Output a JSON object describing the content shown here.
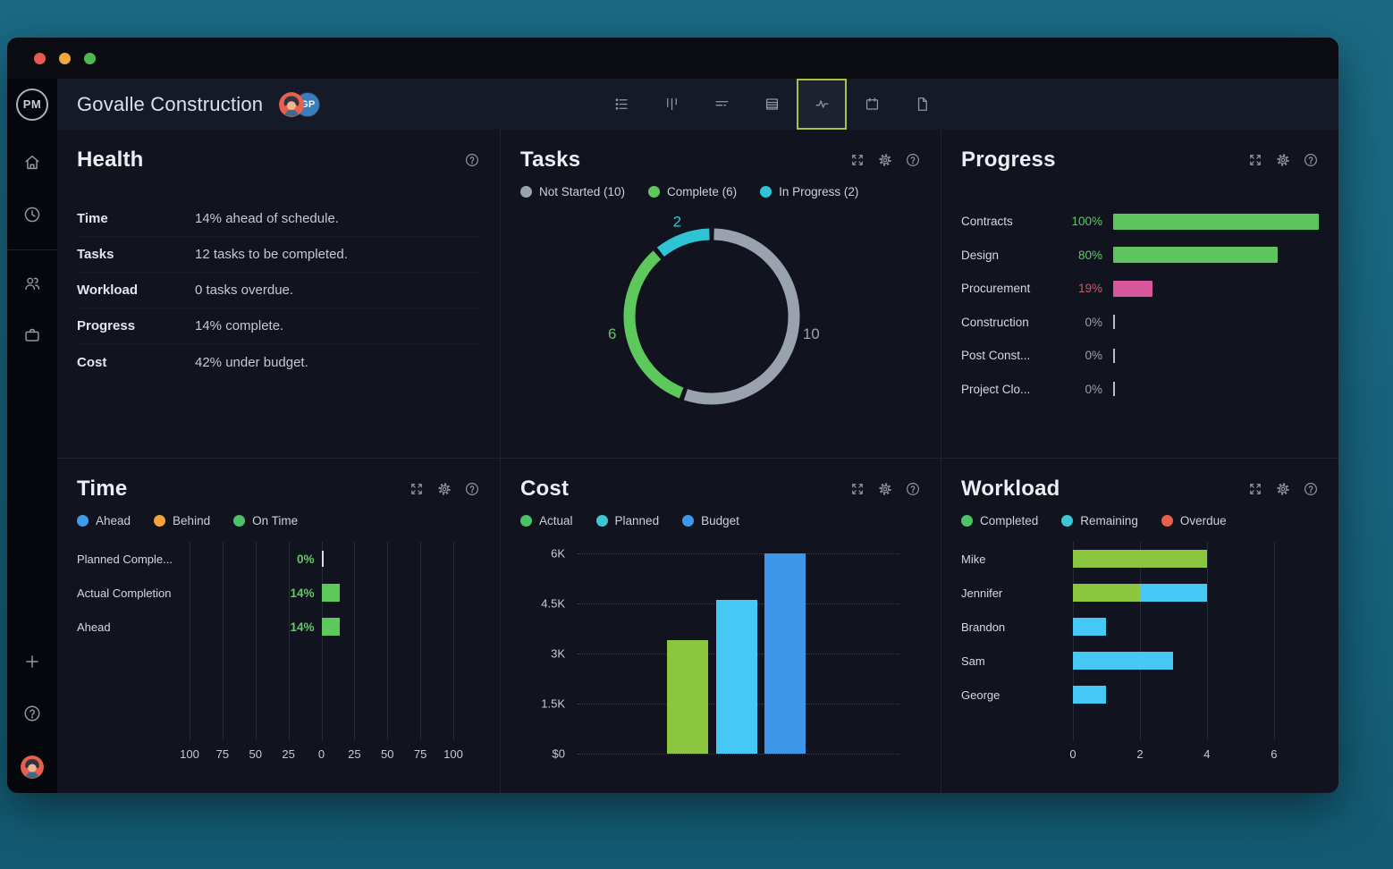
{
  "window_controls": {
    "close": "close-button",
    "minimize": "minimize-button",
    "zoom": "zoom-button"
  },
  "header": {
    "logo": "PM",
    "title": "Govalle Construction",
    "avatar_initials": "GP",
    "toolbar": [
      {
        "icon": "list-view-icon",
        "active": false
      },
      {
        "icon": "board-view-icon",
        "active": false
      },
      {
        "icon": "gantt-view-icon",
        "active": false
      },
      {
        "icon": "sheet-view-icon",
        "active": false
      },
      {
        "icon": "dashboard-view-icon",
        "active": true
      },
      {
        "icon": "calendar-view-icon",
        "active": false
      },
      {
        "icon": "report-view-icon",
        "active": false
      }
    ],
    "active_tool_border": "#a6c53e"
  },
  "sidebar": {
    "top": [
      "home-icon",
      "clock-icon",
      "team-icon",
      "portfolio-icon"
    ],
    "bottom": [
      "plus-icon",
      "help-icon"
    ]
  },
  "panels": {
    "health": {
      "title": "Health",
      "rows": [
        {
          "label": "Time",
          "value": "14% ahead of schedule."
        },
        {
          "label": "Tasks",
          "value": "12 tasks to be completed."
        },
        {
          "label": "Workload",
          "value": "0 tasks overdue."
        },
        {
          "label": "Progress",
          "value": "14% complete."
        },
        {
          "label": "Cost",
          "value": "42% under budget."
        }
      ]
    },
    "tasks": {
      "title": "Tasks",
      "legend": [
        {
          "label": "Not Started (10)",
          "color": "#9aa3ad"
        },
        {
          "label": "Complete (6)",
          "color": "#5dc95d"
        },
        {
          "label": "In Progress (2)",
          "color": "#2fc4d4"
        }
      ],
      "chart_data": {
        "type": "pie",
        "donut": true,
        "segments": [
          {
            "name": "Not Started",
            "value": 10,
            "label": "10",
            "color": "#9aa3ad"
          },
          {
            "name": "Complete",
            "value": 6,
            "label": "6",
            "color": "#5dc95d"
          },
          {
            "name": "In Progress",
            "value": 2,
            "label": "2",
            "color": "#2fc4d4"
          }
        ]
      }
    },
    "progress": {
      "title": "Progress",
      "chart_data": {
        "type": "bar",
        "orientation": "horizontal",
        "rows": [
          {
            "label": "Contracts",
            "pct": 100,
            "pct_label": "100%",
            "bar_color": "#5ec45e",
            "pct_color": "#5ecb5e"
          },
          {
            "label": "Design",
            "pct": 80,
            "pct_label": "80%",
            "bar_color": "#5ec45e",
            "pct_color": "#5ecb5e"
          },
          {
            "label": "Procurement",
            "pct": 19,
            "pct_label": "19%",
            "bar_color": "#d8569b",
            "pct_color": "#c25f6b"
          },
          {
            "label": "Construction",
            "pct": 0,
            "pct_label": "0%",
            "bar_color": null,
            "pct_color": "#9aa0ac"
          },
          {
            "label": "Post Const...",
            "pct": 0,
            "pct_label": "0%",
            "bar_color": null,
            "pct_color": "#9aa0ac"
          },
          {
            "label": "Project Clo...",
            "pct": 0,
            "pct_label": "0%",
            "bar_color": null,
            "pct_color": "#9aa0ac"
          }
        ]
      }
    },
    "time": {
      "title": "Time",
      "legend": [
        {
          "label": "Ahead",
          "color": "#3f9ce8"
        },
        {
          "label": "Behind",
          "color": "#f0a43c"
        },
        {
          "label": "On Time",
          "color": "#4cc366"
        }
      ],
      "chart_data": {
        "type": "bar",
        "orientation": "horizontal-mirrored",
        "axis_ticks": [
          "100",
          "75",
          "50",
          "25",
          "0",
          "25",
          "50",
          "75",
          "100"
        ],
        "scale_max": 100,
        "value_color": "#5ecb5e",
        "rows": [
          {
            "label": "Planned Comple...",
            "value": 0,
            "value_label": "0%",
            "color": "#5dc95d"
          },
          {
            "label": "Actual Completion",
            "value": 14,
            "value_label": "14%",
            "color": "#5dc95d"
          },
          {
            "label": "Ahead",
            "value": 14,
            "value_label": "14%",
            "color": "#5dc95d"
          }
        ]
      }
    },
    "cost": {
      "title": "Cost",
      "legend": [
        {
          "label": "Actual",
          "color": "#4cc366"
        },
        {
          "label": "Planned",
          "color": "#3cc7d6"
        },
        {
          "label": "Budget",
          "color": "#3e97e8"
        }
      ],
      "chart_data": {
        "type": "bar",
        "orientation": "vertical",
        "y_ticks": [
          "6K",
          "4.5K",
          "3K",
          "1.5K",
          "$0"
        ],
        "ymax": 6000,
        "bars": [
          {
            "name": "Actual",
            "value": 3400,
            "color": "#8cc63f",
            "left_pct": 27.8
          },
          {
            "name": "Planned",
            "value": 4600,
            "color": "#45c8f5",
            "left_pct": 43.0
          },
          {
            "name": "Budget",
            "value": 6000,
            "color": "#3e97e8",
            "left_pct": 58.1
          }
        ],
        "bar_width_pct": 12.7
      }
    },
    "workload": {
      "title": "Workload",
      "legend": [
        {
          "label": "Completed",
          "color": "#4cc366"
        },
        {
          "label": "Remaining",
          "color": "#3cc7d6"
        },
        {
          "label": "Overdue",
          "color": "#e8604c"
        }
      ],
      "chart_data": {
        "type": "bar",
        "orientation": "horizontal-stacked",
        "x_ticks": [
          0,
          2,
          4,
          6
        ],
        "xmax": 7.07,
        "rows": [
          {
            "label": "Mike",
            "segments": [
              {
                "name": "Completed",
                "value": 4,
                "color": "#8cc63f"
              }
            ]
          },
          {
            "label": "Jennifer",
            "segments": [
              {
                "name": "Completed",
                "value": 2,
                "color": "#8cc63f"
              },
              {
                "name": "Remaining",
                "value": 2,
                "color": "#45c8f5"
              }
            ]
          },
          {
            "label": "Brandon",
            "segments": [
              {
                "name": "Remaining",
                "value": 1,
                "color": "#45c8f5"
              }
            ]
          },
          {
            "label": "Sam",
            "segments": [
              {
                "name": "Remaining",
                "value": 3,
                "color": "#45c8f5"
              }
            ]
          },
          {
            "label": "George",
            "segments": [
              {
                "name": "Remaining",
                "value": 1,
                "color": "#45c8f5"
              }
            ]
          }
        ]
      }
    }
  }
}
